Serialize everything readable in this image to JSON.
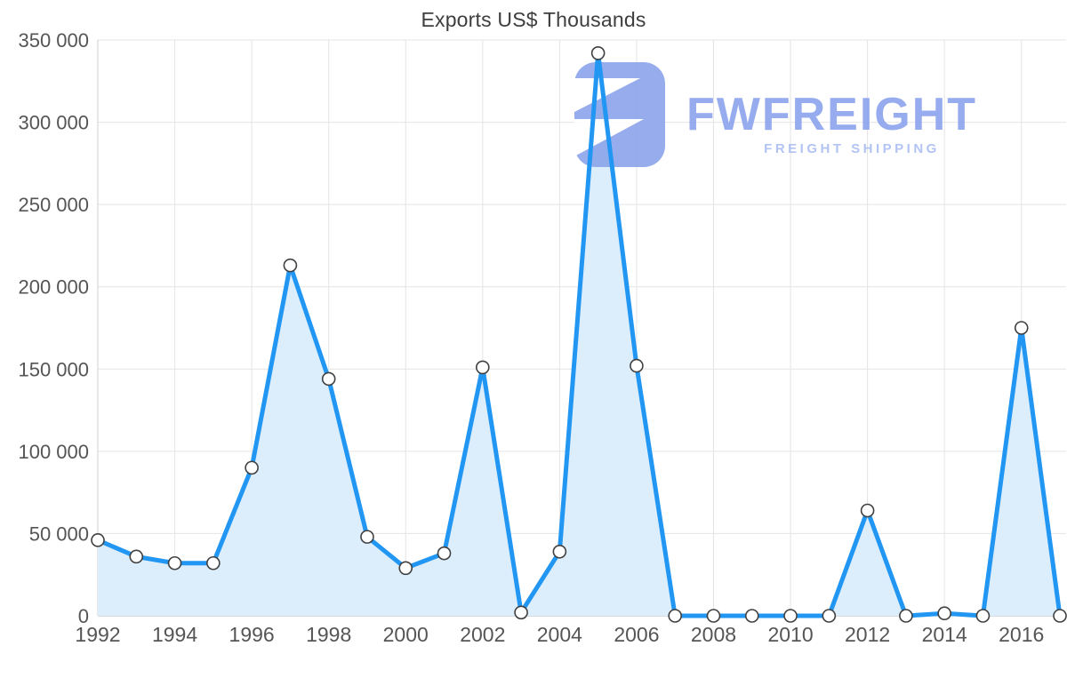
{
  "chart_data": {
    "type": "area",
    "title": "Exports US$ Thousands",
    "x": [
      1992,
      1993,
      1994,
      1995,
      1996,
      1997,
      1998,
      1999,
      2000,
      2001,
      2002,
      2003,
      2004,
      2005,
      2006,
      2007,
      2008,
      2009,
      2010,
      2011,
      2012,
      2013,
      2014,
      2015,
      2016,
      2017
    ],
    "series": [
      {
        "name": "Exports US$ Thousands",
        "values": [
          46000,
          36000,
          32000,
          32000,
          90000,
          213000,
          144000,
          48000,
          29000,
          38000,
          151000,
          2000,
          39000,
          342000,
          152000,
          0,
          0,
          0,
          0,
          0,
          64000,
          0,
          1500,
          0,
          175000,
          0
        ]
      }
    ],
    "ylim": [
      0,
      350000
    ],
    "ytick_interval": 50000,
    "ytick_labels": [
      "0",
      "50 000",
      "100 000",
      "150 000",
      "200 000",
      "250 000",
      "300 000",
      "350 000"
    ],
    "xtick_years": [
      1992,
      1994,
      1996,
      1998,
      2000,
      2002,
      2004,
      2006,
      2008,
      2010,
      2012,
      2014,
      2016
    ],
    "grid": true,
    "legend": "none"
  },
  "style": {
    "line_color": "#2196f3",
    "fill_color": "#dcedfc",
    "marker_fill": "#ffffff",
    "marker_stroke": "#404040",
    "grid_color": "#e4e4e4",
    "axis_color": "#b5b5b5",
    "left_axis_color": "#cfcfcf",
    "label_color": "#555555",
    "title_color": "#3e3e3e"
  },
  "watermark": {
    "brand": "FWFREIGHT",
    "tagline": "FREIGHT SHIPPING",
    "icon_color": "#8ba4ea",
    "brand_color": "#8ca3ee",
    "tagline_color": "#aabdf3"
  }
}
